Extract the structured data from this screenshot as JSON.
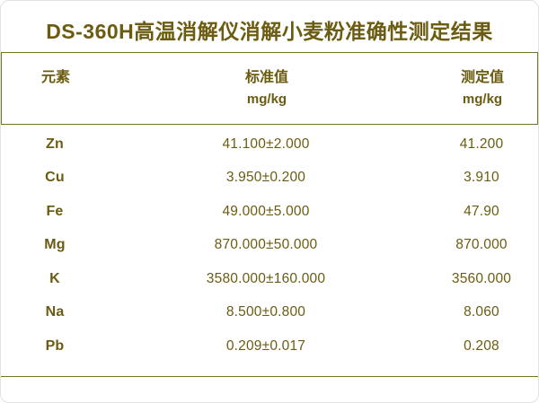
{
  "colors": {
    "background": "#ffffff",
    "text": "#6b5c11",
    "line": "#73732a"
  },
  "chart_data": {
    "type": "table",
    "title": "DS-360H高温消解仪消解小麦粉准确性测定结果",
    "columns": [
      "元素",
      "标准值 mg/kg",
      "测定值 mg/kg"
    ],
    "headers": {
      "element": "元素",
      "standard": "标准值",
      "standard_unit": "mg/kg",
      "measured": "测定值",
      "measured_unit": "mg/kg"
    },
    "rows": [
      {
        "element": "Zn",
        "standard": "41.100±2.000",
        "measured": "41.200"
      },
      {
        "element": "Cu",
        "standard": "3.950±0.200",
        "measured": "3.910"
      },
      {
        "element": "Fe",
        "standard": "49.000±5.000",
        "measured": "47.90"
      },
      {
        "element": "Mg",
        "standard": "870.000±50.000",
        "measured": "870.000"
      },
      {
        "element": "K",
        "standard": "3580.000±160.000",
        "measured": "3560.000"
      },
      {
        "element": "Na",
        "standard": "8.500±0.800",
        "measured": "8.060"
      },
      {
        "element": "Pb",
        "standard": "0.209±0.017",
        "measured": "0.208"
      }
    ]
  }
}
